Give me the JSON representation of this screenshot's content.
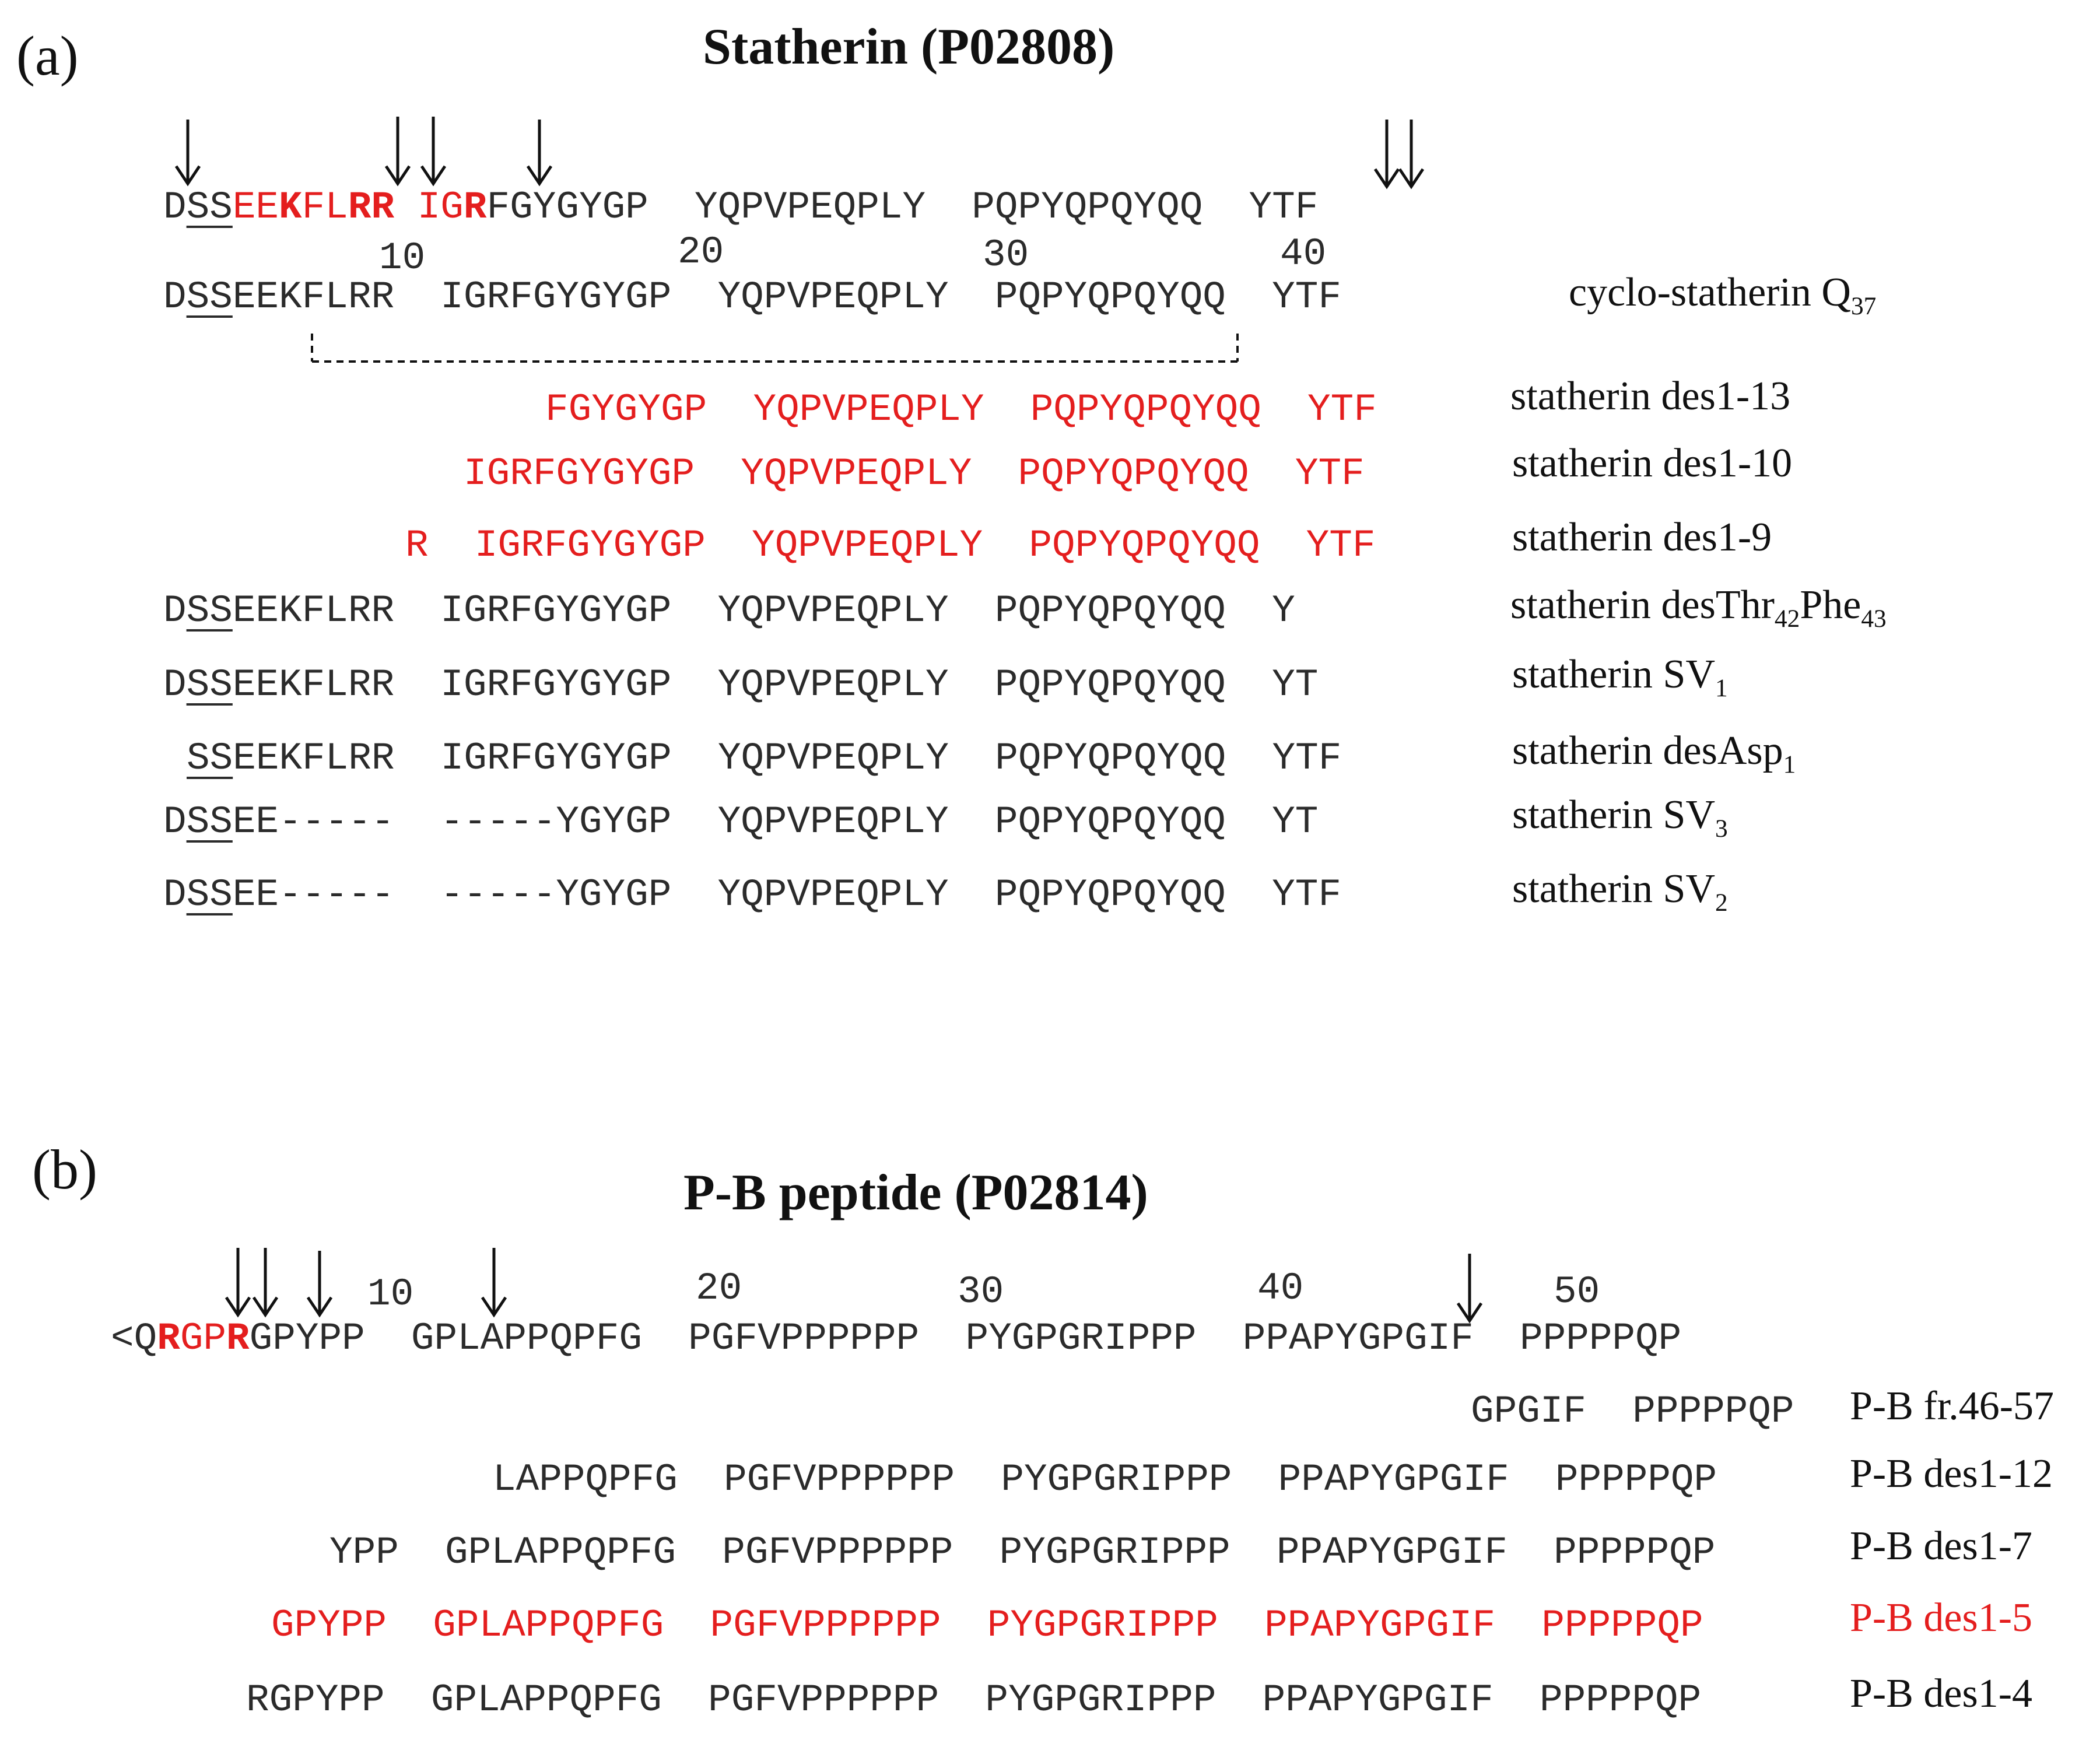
{
  "panel_a": {
    "label": "(a)",
    "title": "Statherin (P02808)",
    "numbers": [
      "10",
      "20",
      "30",
      "40"
    ],
    "ref_seq": {
      "p1": "D",
      "p2": "SS",
      "p3": "EE",
      "p4": "K",
      "p5": "FL",
      "p6": "RR",
      "p7": " IG",
      "p8": "R",
      "p9": "FGYGYGP  YQPVPEQPLY  PQPYQPQYQQ  YTF"
    },
    "rows": [
      {
        "pre": "D",
        "ul": "SS",
        "seq": "EEKFLRR  IGRFGYGYGP  YQPVPEQPLY  PQPYQPQYQQ  YTF",
        "name": "cyclo-statherin Q",
        "sub": "37",
        "name2": ""
      },
      {
        "pre": "",
        "ul": "",
        "seq": "FGYGYGP  YQPVPEQPLY  PQPYQPQYQQ  YTF",
        "name": "statherin des1-13",
        "sub": "",
        "name2": ""
      },
      {
        "pre": "",
        "ul": "",
        "seq": "IGRFGYGYGP  YQPVPEQPLY  PQPYQPQYQQ  YTF",
        "name": "statherin des1-10",
        "sub": "",
        "name2": ""
      },
      {
        "pre": "",
        "ul": "",
        "seq": "R  IGRFGYGYGP  YQPVPEQPLY  PQPYQPQYQQ  YTF",
        "name": "statherin des1-9",
        "sub": "",
        "name2": ""
      },
      {
        "pre": "D",
        "ul": "SS",
        "seq": "EEKFLRR  IGRFGYGYGP  YQPVPEQPLY  PQPYQPQYQQ  Y",
        "name": "statherin desThr",
        "sub": "42",
        "name2": "Phe",
        "sub2": "43"
      },
      {
        "pre": "D",
        "ul": "SS",
        "seq": "EEKFLRR  IGRFGYGYGP  YQPVPEQPLY  PQPYQPQYQQ  YT",
        "name": "statherin SV",
        "sub": "1",
        "name2": ""
      },
      {
        "pre": "",
        "ul": "SS",
        "seq": "EEKFLRR  IGRFGYGYGP  YQPVPEQPLY  PQPYQPQYQQ  YTF",
        "name": "statherin desAsp",
        "sub": "1",
        "name2": ""
      },
      {
        "pre": "D",
        "ul": "SS",
        "seq": "EE-----  -----YGYGP  YQPVPEQPLY  PQPYQPQYQQ  YT",
        "name": "statherin SV",
        "sub": "3",
        "name2": ""
      },
      {
        "pre": "D",
        "ul": "SS",
        "seq": "EE-----  -----YGYGP  YQPVPEQPLY  PQPYQPQYQQ  YTF",
        "name": "statherin SV",
        "sub": "2",
        "name2": ""
      }
    ]
  },
  "panel_b": {
    "label": "(b)",
    "title": "P-B peptide (P02814)",
    "numbers": [
      "10",
      "20",
      "30",
      "40",
      "50"
    ],
    "ref_seq": {
      "p1": "<Q",
      "p2": "R",
      "p3": "GP",
      "p4": "R",
      "p5": "GPYPP  GPLAPPQPFG  PGFVPPPPPP  PYGPGRIPPP  PPAPYGPGIF  PPPPPQP"
    },
    "rows": [
      {
        "seq": "GPGIF  PPPPPQP",
        "name": "P-B fr.46-57",
        "red": false
      },
      {
        "seq": "LAPPQPFG  PGFVPPPPPP  PYGPGRIPPP  PPAPYGPGIF  PPPPPQP",
        "name": "P-B des1-12",
        "red": false
      },
      {
        "seq": "YPP  GPLAPPQPFG  PGFVPPPPPP  PYGPGRIPPP  PPAPYGPGIF  PPPPPQP",
        "name": "P-B des1-7",
        "red": false
      },
      {
        "seq": "GPYPP  GPLAPPQPFG  PGFVPPPPPP  PYGPGRIPPP  PPAPYGPGIF  PPPPPQP",
        "name": "P-B des1-5",
        "red": true
      },
      {
        "seq": "RGPYPP  GPLAPPQPFG  PGFVPPPPPP  PYGPGRIPPP  PPAPYGPGIF  PPPPPQP",
        "name": "P-B des1-4",
        "red": false
      }
    ]
  }
}
